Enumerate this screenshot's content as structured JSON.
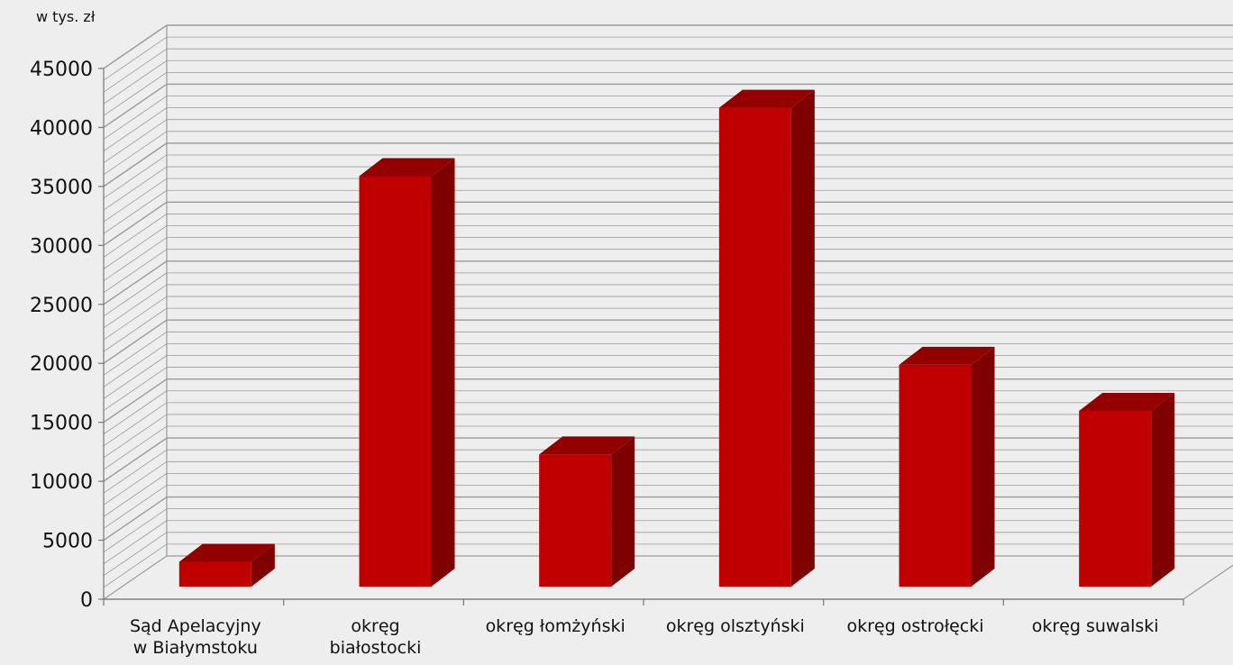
{
  "chart_data": {
    "type": "bar",
    "unit_label": "w tys. zł",
    "categories": [
      [
        "Sąd Apelacyjny",
        "w Białymstoku"
      ],
      [
        "okręg",
        "białostocki"
      ],
      [
        "okręg łomżyński"
      ],
      [
        "okręg olsztyński"
      ],
      [
        "okręg ostrołęcki"
      ],
      [
        "okręg suwalski"
      ]
    ],
    "values": [
      2100,
      34800,
      11200,
      40600,
      18800,
      14900
    ],
    "ylim": [
      0,
      45000
    ],
    "yticks": [
      0,
      5000,
      10000,
      15000,
      20000,
      25000,
      30000,
      35000,
      40000,
      45000
    ],
    "grid": true,
    "colors": {
      "bar_front": "#c00000",
      "bar_side": "#7f0000",
      "bar_top": "#920000",
      "grid": "#9a9a9a"
    }
  }
}
